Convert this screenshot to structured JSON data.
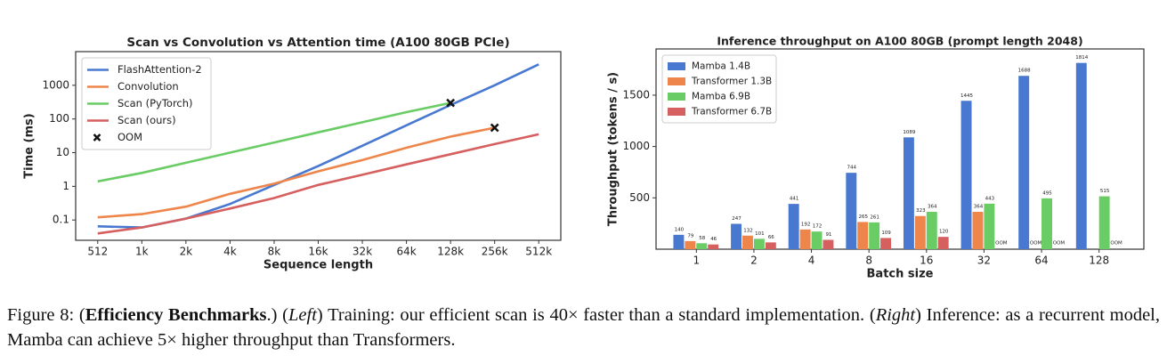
{
  "chart_data": [
    {
      "type": "line",
      "title": "Scan vs Convolution vs Attention time (A100 80GB PCIe)",
      "xlabel": "Sequence length",
      "ylabel": "Time (ms)",
      "yscale": "log",
      "grid": false,
      "legend": "upper left",
      "categories": [
        "512",
        "1k",
        "2k",
        "4k",
        "8k",
        "16k",
        "32k",
        "64k",
        "128k",
        "256k",
        "512k"
      ],
      "ylim": [
        0.025,
        10000
      ],
      "yticks": [
        0.1,
        1,
        10,
        100,
        1000
      ],
      "series": [
        {
          "name": "FlashAttention-2",
          "color": "#4878d0",
          "values": [
            0.065,
            0.06,
            0.11,
            0.3,
            1.1,
            4,
            16,
            65,
            260,
            1000,
            4200
          ]
        },
        {
          "name": "Convolution",
          "color": "#ee854a",
          "values": [
            0.12,
            0.15,
            0.25,
            0.6,
            1.2,
            2.8,
            6,
            14,
            30,
            55,
            null
          ]
        },
        {
          "name": "Scan (PyTorch)",
          "color": "#6acc64",
          "values": [
            1.4,
            2.5,
            5,
            10,
            20,
            40,
            80,
            160,
            300,
            null,
            null
          ]
        },
        {
          "name": "Scan (ours)",
          "color": "#d65f5f",
          "values": [
            0.04,
            0.06,
            0.11,
            0.22,
            0.45,
            1.1,
            2.2,
            4.5,
            9,
            18,
            35
          ]
        },
        {
          "name": "OOM",
          "color": "#111111",
          "marker": "x",
          "values": [
            null,
            null,
            null,
            null,
            null,
            null,
            null,
            null,
            300,
            55,
            null
          ]
        }
      ]
    },
    {
      "type": "bar",
      "title": "Inference throughput on A100 80GB (prompt length 2048)",
      "xlabel": "Batch size",
      "ylabel": "Throughput (tokens / s)",
      "grid": false,
      "legend": "upper left",
      "categories": [
        "1",
        "2",
        "4",
        "8",
        "16",
        "32",
        "64",
        "128"
      ],
      "ylim": [
        0,
        1950
      ],
      "yticks": [
        500,
        1000,
        1500
      ],
      "series": [
        {
          "name": "Mamba 1.4B",
          "color": "#4878d0",
          "values": [
            140,
            247,
            441,
            744,
            1089,
            1445,
            1688,
            1814
          ]
        },
        {
          "name": "Transformer 1.3B",
          "color": "#ee854a",
          "values": [
            79,
            132,
            192,
            265,
            323,
            364,
            null,
            null
          ],
          "value_labels": [
            null,
            null,
            null,
            null,
            null,
            null,
            "OOM",
            null
          ]
        },
        {
          "name": "Mamba 6.9B",
          "color": "#6acc64",
          "values": [
            58,
            101,
            172,
            261,
            364,
            443,
            495,
            515
          ]
        },
        {
          "name": "Transformer 6.7B",
          "color": "#d65f5f",
          "values": [
            46,
            66,
            91,
            109,
            120,
            null,
            null,
            null
          ],
          "value_labels": [
            null,
            null,
            null,
            null,
            null,
            "OOM",
            "OOM",
            "OOM"
          ]
        }
      ]
    }
  ],
  "caption": [
    {
      "text": "Figure 8: ("
    },
    {
      "text": "Efficiency Benchmarks",
      "style": "bold"
    },
    {
      "text": ".) ("
    },
    {
      "text": "Left",
      "style": "italic"
    },
    {
      "text": ") Training: our efficient scan is 40× faster than a standard implementation. ("
    },
    {
      "text": "Right",
      "style": "italic"
    },
    {
      "text": ") Inference: as a recurrent model, Mamba can achieve 5× higher throughput than Transformers."
    }
  ]
}
